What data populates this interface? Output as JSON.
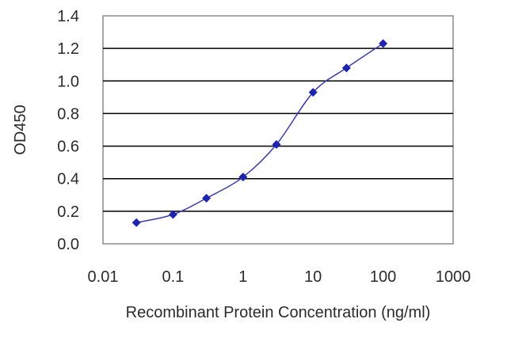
{
  "chart_data": {
    "type": "line",
    "xlabel": "Recombinant Protein Concentration (ng/ml)",
    "ylabel": "OD450",
    "xscale": "log",
    "xlim": [
      0.01,
      1000
    ],
    "ylim": [
      0.0,
      1.4
    ],
    "x_ticks": [
      "0.01",
      "0.1",
      "1",
      "10",
      "100",
      "1000"
    ],
    "y_ticks": [
      "0.0",
      "0.2",
      "0.4",
      "0.6",
      "0.8",
      "1.0",
      "1.2",
      "1.4"
    ],
    "grid": "horizontal",
    "series": [
      {
        "x": [
          0.03,
          0.1,
          0.3,
          1,
          3,
          10,
          30,
          100
        ],
        "y": [
          0.13,
          0.18,
          0.28,
          0.41,
          0.61,
          0.93,
          1.08,
          1.23
        ]
      }
    ],
    "colors": {
      "line": "#3a3fa8",
      "marker": "#1e24b0",
      "grid": "#000000",
      "frame": "#8c8c8c"
    }
  }
}
